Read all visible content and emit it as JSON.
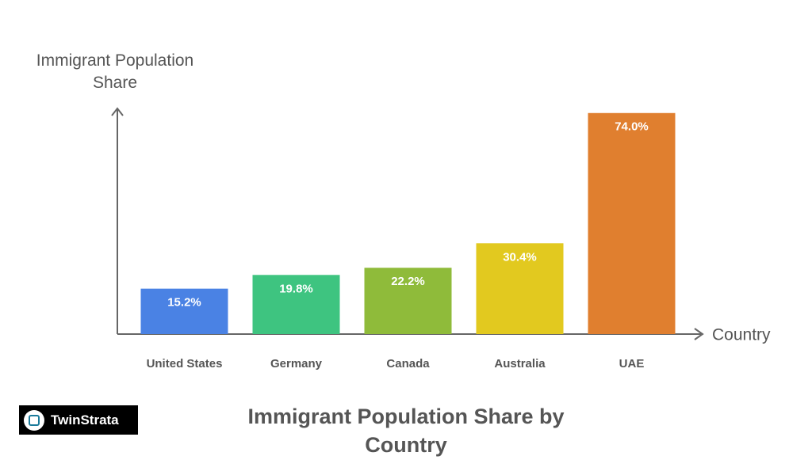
{
  "chart_data": {
    "type": "bar",
    "title": "Immigrant Population Share by Country",
    "y_label": "Immigrant Population Share",
    "x_label": "Country",
    "categories": [
      "United States",
      "Germany",
      "Canada",
      "Australia",
      "UAE"
    ],
    "values": [
      15.2,
      19.8,
      22.2,
      30.4,
      74.0
    ],
    "value_labels": [
      "15.2%",
      "19.8%",
      "22.2%",
      "30.4%",
      "74.0%"
    ],
    "colors": [
      "#4a82e4",
      "#3ec480",
      "#8fbb3a",
      "#e2c91f",
      "#e07f2f"
    ],
    "ylim": [
      0,
      75
    ]
  },
  "logo_text": "TwinStrata"
}
